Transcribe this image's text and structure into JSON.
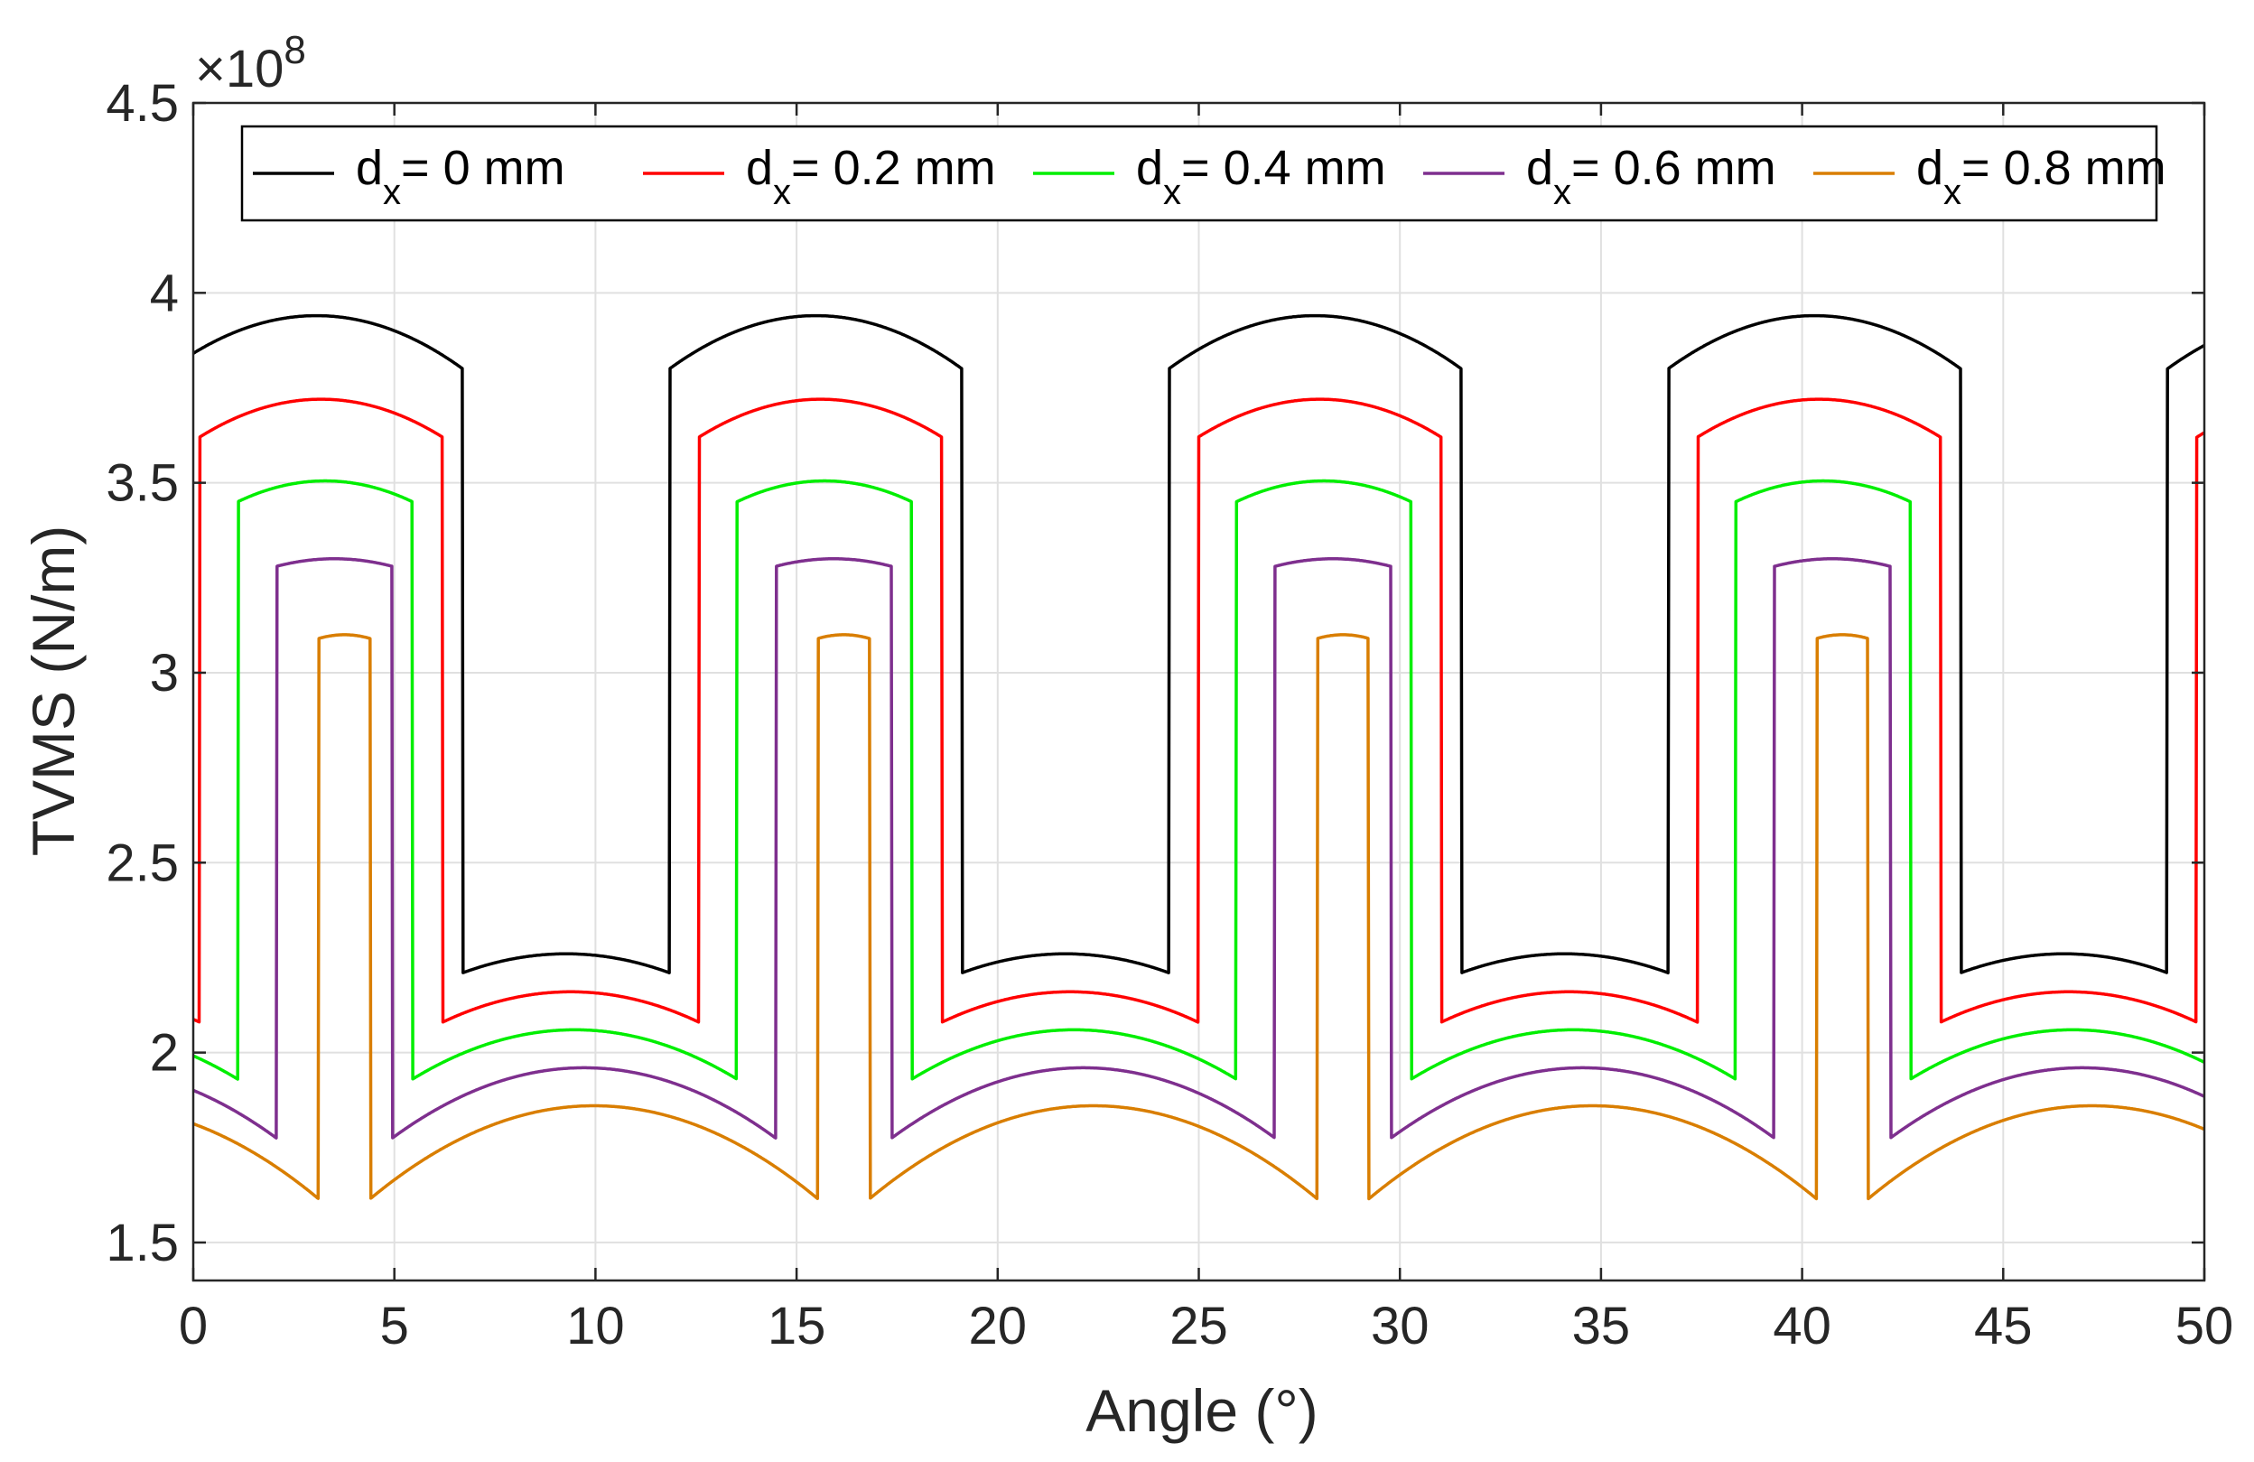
{
  "chart_data": {
    "type": "line",
    "title": "",
    "xlabel": "Angle (°)",
    "ylabel": "TVMS (N/m)",
    "y_exponent_label": "×10",
    "y_exponent_power": "8",
    "xlim": [
      0,
      50
    ],
    "ylim": [
      1.4,
      4.5
    ],
    "x_ticks": [
      "0",
      "5",
      "10",
      "15",
      "20",
      "25",
      "30",
      "35",
      "40",
      "45",
      "50"
    ],
    "y_ticks": [
      "1.5",
      "2",
      "2.5",
      "3",
      "3.5",
      "4",
      "4.5"
    ],
    "grid": true,
    "legend_location": "top",
    "period_deg": 12.414,
    "series": [
      {
        "name": "dx = 0 mm",
        "legend_main": "d",
        "legend_sub": "x",
        "legend_rest": "= 0 mm",
        "color": "#000000",
        "phase_start": 6.7,
        "phase_end": 11.84,
        "high_peak": 3.94,
        "high_edge": 3.8,
        "low_peak": 2.26,
        "low_edge": 2.21
      },
      {
        "name": "dx = 0.2 mm",
        "legend_main": "d",
        "legend_sub": "x",
        "legend_rest": "= 0.2 mm",
        "color": "#ff0000",
        "phase_start": 6.2,
        "phase_end": 12.57,
        "high_peak": 3.72,
        "high_edge": 3.62,
        "low_peak": 2.16,
        "low_edge": 2.08
      },
      {
        "name": "dx = 0.4 mm",
        "legend_main": "d",
        "legend_sub": "x",
        "legend_rest": "= 0.4 mm",
        "color": "#00ee00",
        "phase_start": 5.45,
        "phase_end": 13.52,
        "high_peak": 3.505,
        "high_edge": 3.45,
        "low_peak": 2.06,
        "low_edge": 1.93
      },
      {
        "name": "dx = 0.6 mm",
        "legend_main": "d",
        "legend_sub": "x",
        "legend_rest": "= 0.6 mm",
        "color": "#7e2f8e",
        "phase_start": 4.95,
        "phase_end": 14.48,
        "high_peak": 3.3,
        "high_edge": 3.28,
        "low_peak": 1.96,
        "low_edge": 1.775
      },
      {
        "name": "dx = 0.8 mm",
        "legend_main": "d",
        "legend_sub": "x",
        "legend_rest": "= 0.8 mm",
        "color": "#d97e00",
        "phase_start": 4.4,
        "phase_end": 15.53,
        "high_peak": 3.1,
        "high_edge": 3.09,
        "low_peak": 1.86,
        "low_edge": 1.615
      }
    ]
  }
}
